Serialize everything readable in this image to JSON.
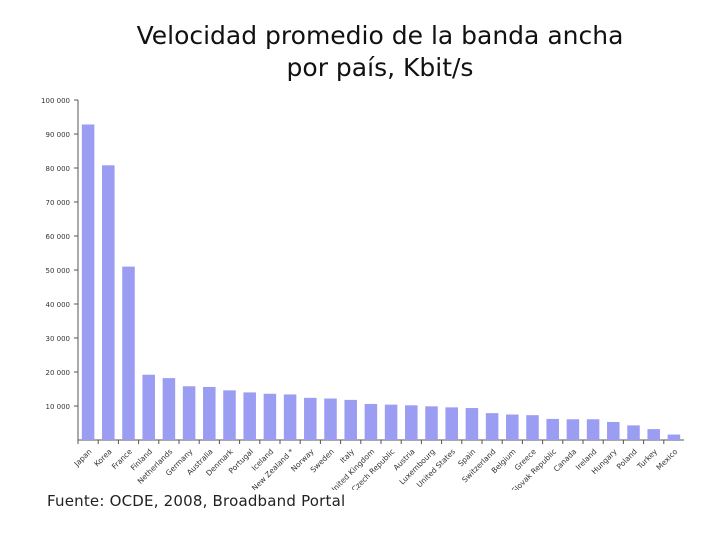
{
  "title_line1": "Velocidad promedio de la banda ancha",
  "title_line2": "por país, Kbit/s",
  "source": "Fuente: OCDE, 2008, Broadband Portal",
  "colors": {
    "bar": "#9b9df3",
    "axis": "#555555",
    "text": "#333333"
  },
  "chart_data": {
    "type": "bar",
    "title": "Velocidad promedio de la banda ancha por país, Kbit/s",
    "xlabel": "",
    "ylabel": "",
    "ylim": [
      0,
      100000
    ],
    "y_ticks": [
      10000,
      20000,
      30000,
      40000,
      50000,
      60000,
      70000,
      80000,
      90000,
      100000
    ],
    "y_tick_labels": [
      "10 000",
      "20 000",
      "30 000",
      "40 000",
      "50 000",
      "60 000",
      "70 000",
      "80 000",
      "90 000",
      "100 000"
    ],
    "grid": false,
    "categories": [
      "Japan",
      "Korea",
      "France",
      "Finland",
      "Netherlands",
      "Germany",
      "Australia",
      "Denmark",
      "Portugal",
      "Iceland",
      "New Zealand *",
      "Norway",
      "Sweden",
      "Italy",
      "United Kingdom",
      "Czech Republic",
      "Austria",
      "Luxembourg",
      "United States",
      "Spain",
      "Switzerland",
      "Belgium",
      "Greece",
      "Slovak Republic",
      "Canada",
      "Ireland",
      "Hungary",
      "Poland",
      "Turkey",
      "Mexico"
    ],
    "values": [
      92800,
      80800,
      51000,
      19200,
      18200,
      15800,
      15600,
      14600,
      14000,
      13600,
      13400,
      12400,
      12200,
      11800,
      10600,
      10400,
      10200,
      9900,
      9600,
      9400,
      7900,
      7500,
      7300,
      6200,
      6100,
      6100,
      5300,
      4300,
      3200,
      1600
    ]
  }
}
